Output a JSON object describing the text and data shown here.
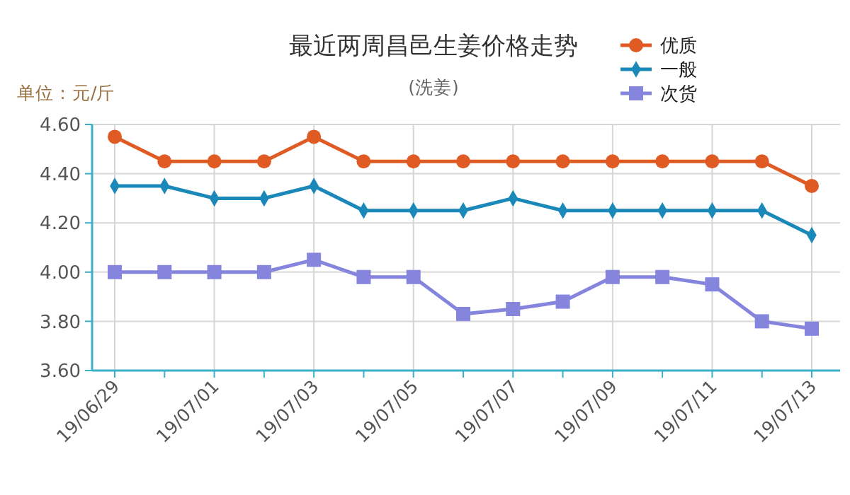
{
  "chart_data": {
    "type": "line",
    "title": "最近两周昌邑生姜价格走势",
    "subtitle": "(洗姜)",
    "ylabel": "单位：元/斤",
    "categories": [
      "19/06/29",
      null,
      "19/07/01",
      null,
      "19/07/03",
      null,
      "19/07/05",
      null,
      "19/07/07",
      null,
      "19/07/09",
      null,
      "19/07/11",
      null,
      "19/07/13"
    ],
    "series": [
      {
        "name": "优质",
        "color": "#e05a24",
        "marker": "circle",
        "values": [
          4.55,
          4.45,
          4.45,
          4.45,
          4.55,
          4.45,
          4.45,
          4.45,
          4.45,
          4.45,
          4.45,
          4.45,
          4.45,
          4.45,
          4.35
        ]
      },
      {
        "name": "一般",
        "color": "#1a88b8",
        "marker": "diamond",
        "values": [
          4.35,
          4.35,
          4.3,
          4.3,
          4.35,
          4.25,
          4.25,
          4.25,
          4.3,
          4.25,
          4.25,
          4.25,
          4.25,
          4.25,
          4.15
        ]
      },
      {
        "name": "次货",
        "color": "#8585de",
        "marker": "square",
        "values": [
          4.0,
          4.0,
          4.0,
          4.0,
          4.05,
          3.98,
          3.98,
          3.83,
          3.85,
          3.88,
          3.98,
          3.98,
          3.95,
          3.8,
          3.77
        ]
      }
    ],
    "ylim": [
      3.6,
      4.6
    ],
    "yticks": [
      {
        "value": 3.6,
        "label": "3.60"
      },
      {
        "value": 3.8,
        "label": "3.80"
      },
      {
        "value": 4,
        "label": "4.00"
      },
      {
        "value": 4.2,
        "label": "4.20"
      },
      {
        "value": 4.4,
        "label": "4.40"
      },
      {
        "value": 4.6,
        "label": "4.60"
      }
    ],
    "grid": true,
    "legend": "top right"
  }
}
